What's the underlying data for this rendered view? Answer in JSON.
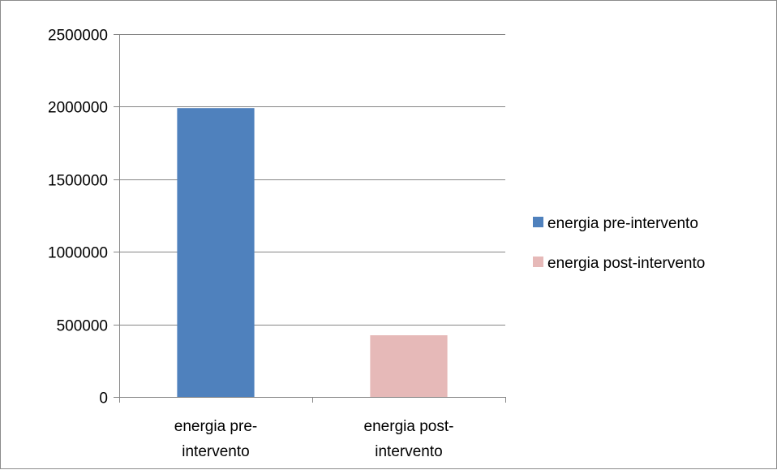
{
  "chart_data": {
    "type": "bar",
    "categories": [
      "energia pre-intervento",
      "energia post-intervento"
    ],
    "category_label_lines": [
      [
        "energia pre-",
        "intervento"
      ],
      [
        "energia post-",
        "intervento"
      ]
    ],
    "values": [
      1990000,
      425000
    ],
    "colors": [
      "#4f81bd",
      "#e6b9b8"
    ],
    "ylim": [
      0,
      2500000
    ],
    "yticks": [
      0,
      500000,
      1000000,
      1500000,
      2000000,
      2500000
    ],
    "ytick_labels": [
      "0",
      "500000",
      "1000000",
      "1500000",
      "2000000",
      "2500000"
    ],
    "grid": true,
    "legend_position": "right",
    "legend": [
      {
        "label": "energia pre-intervento",
        "color": "#4f81bd"
      },
      {
        "label": "energia post-intervento",
        "color": "#e6b9b8"
      }
    ],
    "title": "",
    "xlabel": "",
    "ylabel": ""
  }
}
